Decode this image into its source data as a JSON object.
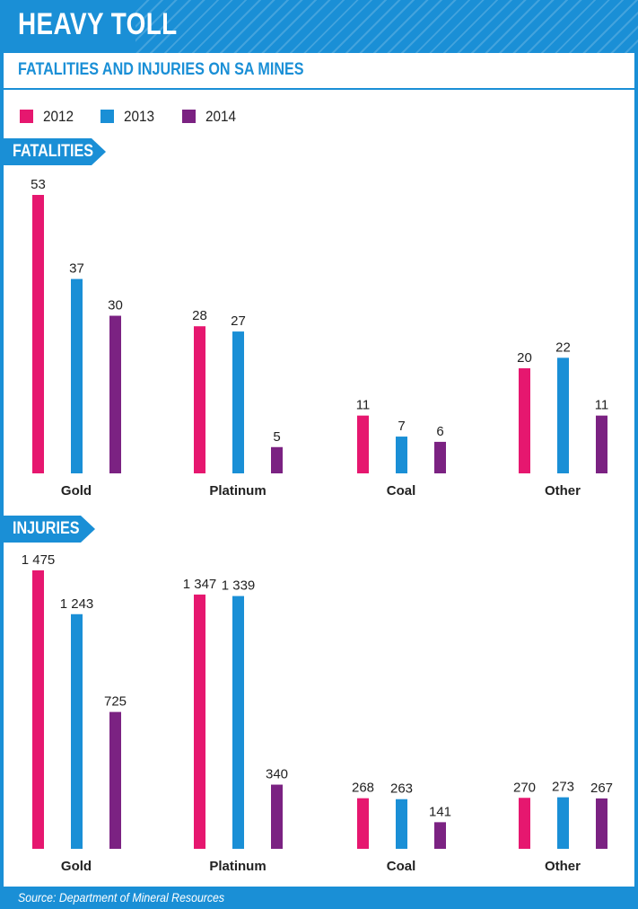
{
  "header": {
    "title": "HEAVY TOLL"
  },
  "subtitle": "FATALITIES AND INJURIES ON SA MINES",
  "legend": [
    {
      "label": "2012",
      "color": "#e6176f"
    },
    {
      "label": "2013",
      "color": "#1a8fd6"
    },
    {
      "label": "2014",
      "color": "#7b2282"
    }
  ],
  "sections": {
    "fatalities": {
      "label": "FATALITIES"
    },
    "injuries": {
      "label": "INJURIES"
    }
  },
  "chart_data": [
    {
      "type": "bar",
      "title": "FATALITIES",
      "categories": [
        "Gold",
        "Platinum",
        "Coal",
        "Other"
      ],
      "series": [
        {
          "name": "2012",
          "color": "#e6176f",
          "values": [
            53,
            28,
            11,
            20
          ],
          "labels": [
            "53",
            "28",
            "11",
            "20"
          ]
        },
        {
          "name": "2013",
          "color": "#1a8fd6",
          "values": [
            37,
            27,
            7,
            22
          ],
          "labels": [
            "37",
            "27",
            "7",
            "22"
          ]
        },
        {
          "name": "2014",
          "color": "#7b2282",
          "values": [
            30,
            5,
            6,
            11
          ],
          "labels": [
            "30",
            "5",
            "6",
            "11"
          ]
        }
      ],
      "ylim": [
        0,
        53
      ],
      "grid": false
    },
    {
      "type": "bar",
      "title": "INJURIES",
      "categories": [
        "Gold",
        "Platinum",
        "Coal",
        "Other"
      ],
      "series": [
        {
          "name": "2012",
          "color": "#e6176f",
          "values": [
            1475,
            1347,
            268,
            270
          ],
          "labels": [
            "1 475",
            "1 347",
            "268",
            "270"
          ]
        },
        {
          "name": "2013",
          "color": "#1a8fd6",
          "values": [
            1243,
            1339,
            263,
            273
          ],
          "labels": [
            "1 243",
            "1 339",
            "263",
            "273"
          ]
        },
        {
          "name": "2014",
          "color": "#7b2282",
          "values": [
            725,
            340,
            141,
            267
          ],
          "labels": [
            "725",
            "340",
            "141",
            "267"
          ]
        }
      ],
      "ylim": [
        0,
        1475
      ],
      "grid": false
    }
  ],
  "footer": {
    "source": "Source: Department of Mineral Resources"
  }
}
